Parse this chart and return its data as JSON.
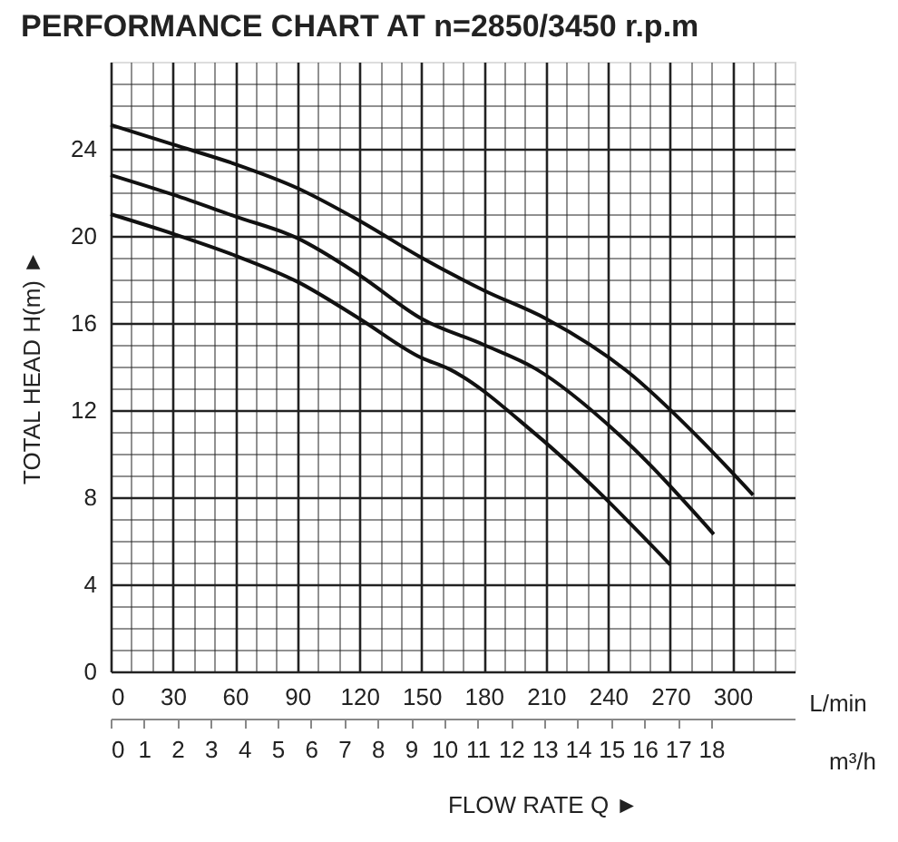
{
  "chart_data": {
    "type": "line",
    "title": "PERFORMANCE CHART AT n=2850/3450 r.p.m",
    "xlabel": "FLOW RATE Q ►",
    "ylabel": "TOTAL HEAD H(m) ►",
    "annotations": [
      "L/min",
      "m³/h"
    ],
    "series": [
      {
        "color": "#111111",
        "x": [
          0,
          30,
          60,
          90,
          120,
          150,
          180,
          210,
          249,
          283,
          310
        ],
        "values": [
          25.1,
          24.2,
          23.3,
          22.2,
          20.7,
          19.0,
          17.5,
          16.2,
          13.8,
          10.8,
          8.1
        ]
      },
      {
        "color": "#111111",
        "x": [
          0,
          30,
          60,
          90,
          120,
          150,
          180,
          205,
          245,
          291
        ],
        "values": [
          22.8,
          21.9,
          20.9,
          19.9,
          18.2,
          16.2,
          15.0,
          13.9,
          10.9,
          6.3
        ]
      },
      {
        "color": "#111111",
        "x": [
          0,
          30,
          60,
          90,
          120,
          150,
          163,
          205,
          270
        ],
        "values": [
          21.0,
          20.1,
          19.1,
          17.9,
          16.2,
          14.4,
          13.9,
          10.9,
          4.9
        ]
      }
    ],
    "xlim": [
      0,
      330
    ],
    "xticks": [
      0,
      {
        "value": 10,
        "label": null
      },
      {
        "value": 20,
        "label": null
      },
      30,
      {
        "value": 40,
        "label": null
      },
      {
        "value": 50,
        "label": null
      },
      60,
      {
        "value": 70,
        "label": null
      },
      {
        "value": 80,
        "label": null
      },
      90,
      {
        "value": 100,
        "label": null
      },
      {
        "value": 110,
        "label": null
      },
      120,
      {
        "value": 130,
        "label": null
      },
      {
        "value": 140,
        "label": null
      },
      150,
      {
        "value": 160,
        "label": null
      },
      {
        "value": 170,
        "label": null
      },
      180,
      {
        "value": 190,
        "label": null
      },
      {
        "value": 200,
        "label": null
      },
      210,
      {
        "value": 220,
        "label": null
      },
      {
        "value": 230,
        "label": null
      },
      240,
      {
        "value": 250,
        "label": null
      },
      {
        "value": 260,
        "label": null
      },
      270,
      {
        "value": 280,
        "label": null
      },
      {
        "value": 290,
        "label": null
      },
      300,
      {
        "value": 310,
        "label": null
      },
      {
        "value": 320,
        "label": null
      }
    ],
    "ylim": [
      0,
      28
    ],
    "yticks": [
      0,
      {
        "value": 1,
        "label": null
      },
      {
        "value": 2,
        "label": null
      },
      {
        "value": 3,
        "label": null
      },
      4,
      {
        "value": 5,
        "label": null
      },
      {
        "value": 6,
        "label": null
      },
      {
        "value": 7,
        "label": null
      },
      8,
      {
        "value": 9,
        "label": null
      },
      {
        "value": 10,
        "label": null
      },
      {
        "value": 11,
        "label": null
      },
      12,
      {
        "value": 13,
        "label": null
      },
      {
        "value": 14,
        "label": null
      },
      {
        "value": 15,
        "label": null
      },
      16,
      {
        "value": 17,
        "label": null
      },
      {
        "value": 18,
        "label": null
      },
      {
        "value": 19,
        "label": null
      },
      20,
      {
        "value": 21,
        "label": null
      },
      {
        "value": 22,
        "label": null
      },
      {
        "value": 23,
        "label": null
      },
      24,
      {
        "value": 25,
        "label": null
      },
      {
        "value": 26,
        "label": null
      },
      {
        "value": 27,
        "label": null
      }
    ],
    "x2lim": [
      0,
      20.5
    ],
    "x2ticks": [
      0,
      1,
      2,
      3,
      4,
      5,
      6,
      7,
      8,
      9,
      10,
      11,
      12,
      13,
      14,
      15,
      16,
      17,
      18
    ],
    "grid": true,
    "marker": "none",
    "line_style": "solid",
    "legend": false
  }
}
